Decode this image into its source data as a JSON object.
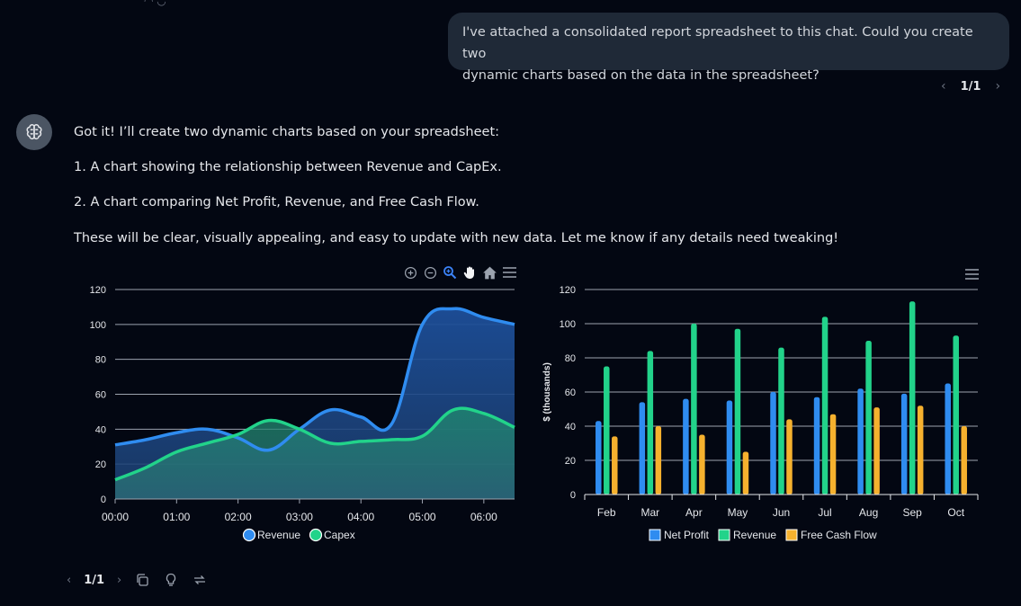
{
  "user_message": {
    "line1": "I've attached a consolidated report spreadsheet to this chat. Could you create two",
    "line2": "dynamic charts based on the data in the spreadsheet?"
  },
  "user_pager": {
    "prev": "‹",
    "count": "1/1",
    "next": "›"
  },
  "assistant": {
    "avatar_icon": "brain-icon",
    "line1": "Got it! I’ll create two dynamic charts based on your spreadsheet:",
    "line2": "1. A chart showing the relationship between Revenue and CapEx.",
    "line3": "2. A chart comparing Net Profit, Revenue, and Free Cash Flow.",
    "line4": "These will be clear, visually appealing, and easy to update with new data. Let me know if any details need tweaking!"
  },
  "bottom_pager": {
    "prev": "‹",
    "count": "1/1",
    "next": "›"
  },
  "colors": {
    "blue": "#2f8cf0",
    "green": "#22d38a",
    "orange": "#f6b12e",
    "bg": "#030712"
  },
  "chart_data": [
    {
      "type": "area",
      "title": "",
      "x": [
        "00:00",
        "00:30",
        "01:00",
        "01:30",
        "02:00",
        "02:30",
        "03:00",
        "03:30",
        "04:00",
        "04:30",
        "05:00",
        "05:30",
        "06:00",
        "06:30"
      ],
      "xticks": [
        "00:00",
        "01:00",
        "02:00",
        "03:00",
        "04:00",
        "05:00",
        "06:00"
      ],
      "yticks": [
        "0",
        "20",
        "40",
        "60",
        "80",
        "100",
        "120"
      ],
      "ylim": [
        0,
        120
      ],
      "series": [
        {
          "name": "Revenue",
          "values": [
            31,
            34,
            38,
            40,
            35,
            28,
            40,
            51,
            47,
            43,
            100,
            109,
            104,
            100
          ]
        },
        {
          "name": "Capex",
          "values": [
            11,
            18,
            27,
            32,
            37,
            45,
            40,
            32,
            33,
            34,
            36,
            51,
            49,
            41
          ]
        }
      ],
      "legend": [
        "Revenue",
        "Capex"
      ],
      "legend_position": "bottom",
      "toolbar": [
        "zoom-in-icon",
        "zoom-out-icon",
        "zoom-select-icon",
        "pan-hand-icon",
        "home-icon",
        "menu-icon"
      ]
    },
    {
      "type": "bar",
      "title": "",
      "categories": [
        "Feb",
        "Mar",
        "Apr",
        "May",
        "Jun",
        "Jul",
        "Aug",
        "Sep",
        "Oct"
      ],
      "series": [
        {
          "name": "Net Profit",
          "values": [
            43,
            54,
            56,
            55,
            60,
            57,
            62,
            59,
            65
          ]
        },
        {
          "name": "Revenue",
          "values": [
            75,
            84,
            100,
            97,
            86,
            104,
            90,
            113,
            93
          ]
        },
        {
          "name": "Free Cash Flow",
          "values": [
            34,
            40,
            35,
            25,
            44,
            47,
            51,
            52,
            40
          ]
        }
      ],
      "yticks": [
        "0",
        "20",
        "40",
        "60",
        "80",
        "100",
        "120"
      ],
      "ylim": [
        0,
        120
      ],
      "ylabel": "$ (thousands)",
      "legend": [
        "Net Profit",
        "Revenue",
        "Free Cash Flow"
      ],
      "legend_position": "bottom",
      "toolbar": [
        "menu-icon"
      ]
    }
  ]
}
